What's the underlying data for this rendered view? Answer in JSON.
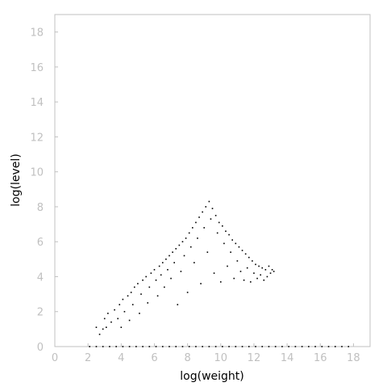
{
  "chart_data": {
    "type": "scatter",
    "title": "",
    "xlabel": "log(weight)",
    "ylabel": "log(level)",
    "xlim": [
      0,
      19
    ],
    "ylim": [
      0,
      19
    ],
    "xticks": [
      0,
      2,
      4,
      6,
      8,
      10,
      12,
      14,
      16,
      18
    ],
    "yticks": [
      0,
      2,
      4,
      6,
      8,
      10,
      12,
      14,
      16,
      18
    ],
    "grid": false,
    "legend": "none",
    "colors": {
      "points": "#000000",
      "frame": "#c0c0c0",
      "tick_labels": "#c0c0c0",
      "axis_titles": "#000000",
      "background": "#ffffff"
    },
    "series": [
      {
        "points": [
          [
            2.1,
            0
          ],
          [
            2.5,
            0
          ],
          [
            2.9,
            0
          ],
          [
            3.3,
            0
          ],
          [
            3.7,
            0
          ],
          [
            4.1,
            0
          ],
          [
            4.5,
            0
          ],
          [
            4.9,
            0
          ],
          [
            5.3,
            0
          ],
          [
            5.7,
            0
          ],
          [
            6.1,
            0
          ],
          [
            6.5,
            0
          ],
          [
            6.9,
            0
          ],
          [
            7.3,
            0
          ],
          [
            7.7,
            0
          ],
          [
            8.1,
            0
          ],
          [
            8.5,
            0
          ],
          [
            8.9,
            0
          ],
          [
            9.3,
            0
          ],
          [
            9.7,
            0
          ],
          [
            10.1,
            0
          ],
          [
            10.5,
            0
          ],
          [
            10.9,
            0
          ],
          [
            11.3,
            0
          ],
          [
            11.7,
            0
          ],
          [
            12.1,
            0
          ],
          [
            12.5,
            0
          ],
          [
            12.9,
            0
          ],
          [
            13.3,
            0
          ],
          [
            13.7,
            0
          ],
          [
            14.1,
            0
          ],
          [
            14.5,
            0
          ],
          [
            14.9,
            0
          ],
          [
            15.3,
            0
          ],
          [
            15.7,
            0
          ],
          [
            16.1,
            0
          ],
          [
            16.5,
            0
          ],
          [
            16.9,
            0
          ],
          [
            17.3,
            0
          ],
          [
            17.7,
            0
          ],
          [
            2.5,
            1.1
          ],
          [
            2.7,
            0.7
          ],
          [
            2.9,
            1.0
          ],
          [
            3.0,
            1.6
          ],
          [
            3.1,
            1.1
          ],
          [
            3.2,
            1.9
          ],
          [
            3.4,
            1.4
          ],
          [
            3.6,
            2.1
          ],
          [
            3.8,
            1.6
          ],
          [
            3.9,
            2.4
          ],
          [
            4.0,
            1.1
          ],
          [
            4.1,
            2.7
          ],
          [
            4.2,
            2.0
          ],
          [
            4.4,
            2.9
          ],
          [
            4.5,
            1.5
          ],
          [
            4.6,
            3.1
          ],
          [
            4.7,
            2.4
          ],
          [
            4.8,
            3.4
          ],
          [
            5.0,
            3.6
          ],
          [
            5.1,
            1.9
          ],
          [
            5.2,
            3.0
          ],
          [
            5.3,
            3.8
          ],
          [
            5.5,
            4.0
          ],
          [
            5.6,
            2.5
          ],
          [
            5.7,
            3.4
          ],
          [
            5.8,
            4.2
          ],
          [
            6.0,
            4.4
          ],
          [
            6.1,
            3.8
          ],
          [
            6.2,
            2.9
          ],
          [
            6.3,
            4.6
          ],
          [
            6.4,
            4.1
          ],
          [
            6.5,
            4.8
          ],
          [
            6.6,
            3.4
          ],
          [
            6.7,
            5.0
          ],
          [
            6.8,
            4.4
          ],
          [
            6.9,
            5.2
          ],
          [
            7.0,
            3.9
          ],
          [
            7.1,
            5.4
          ],
          [
            7.2,
            4.8
          ],
          [
            7.3,
            5.6
          ],
          [
            7.4,
            2.4
          ],
          [
            7.5,
            5.8
          ],
          [
            7.6,
            4.3
          ],
          [
            7.7,
            6.0
          ],
          [
            7.8,
            5.2
          ],
          [
            7.9,
            6.2
          ],
          [
            8.0,
            3.1
          ],
          [
            8.1,
            6.5
          ],
          [
            8.2,
            5.7
          ],
          [
            8.3,
            6.8
          ],
          [
            8.4,
            4.8
          ],
          [
            8.5,
            7.1
          ],
          [
            8.6,
            6.2
          ],
          [
            8.7,
            7.4
          ],
          [
            8.8,
            3.6
          ],
          [
            8.9,
            7.7
          ],
          [
            9.0,
            6.8
          ],
          [
            9.1,
            8.0
          ],
          [
            9.2,
            5.4
          ],
          [
            9.3,
            8.3
          ],
          [
            9.4,
            7.3
          ],
          [
            9.5,
            7.9
          ],
          [
            9.6,
            4.2
          ],
          [
            9.7,
            7.5
          ],
          [
            9.8,
            6.5
          ],
          [
            9.9,
            7.1
          ],
          [
            10.0,
            3.7
          ],
          [
            10.1,
            6.9
          ],
          [
            10.2,
            5.9
          ],
          [
            10.3,
            6.6
          ],
          [
            10.4,
            4.6
          ],
          [
            10.5,
            6.4
          ],
          [
            10.6,
            5.4
          ],
          [
            10.7,
            6.1
          ],
          [
            10.8,
            3.9
          ],
          [
            10.9,
            5.9
          ],
          [
            11.0,
            4.9
          ],
          [
            11.1,
            5.7
          ],
          [
            11.2,
            4.3
          ],
          [
            11.3,
            5.5
          ],
          [
            11.4,
            3.8
          ],
          [
            11.5,
            5.3
          ],
          [
            11.6,
            4.5
          ],
          [
            11.7,
            5.1
          ],
          [
            11.8,
            3.7
          ],
          [
            11.9,
            4.9
          ],
          [
            12.0,
            4.2
          ],
          [
            12.1,
            4.7
          ],
          [
            12.2,
            3.9
          ],
          [
            12.3,
            4.6
          ],
          [
            12.4,
            4.1
          ],
          [
            12.5,
            4.5
          ],
          [
            12.6,
            3.8
          ],
          [
            12.7,
            4.4
          ],
          [
            12.8,
            4.0
          ],
          [
            12.9,
            4.6
          ],
          [
            13.0,
            4.2
          ],
          [
            13.1,
            4.4
          ],
          [
            13.2,
            4.3
          ]
        ]
      }
    ]
  }
}
